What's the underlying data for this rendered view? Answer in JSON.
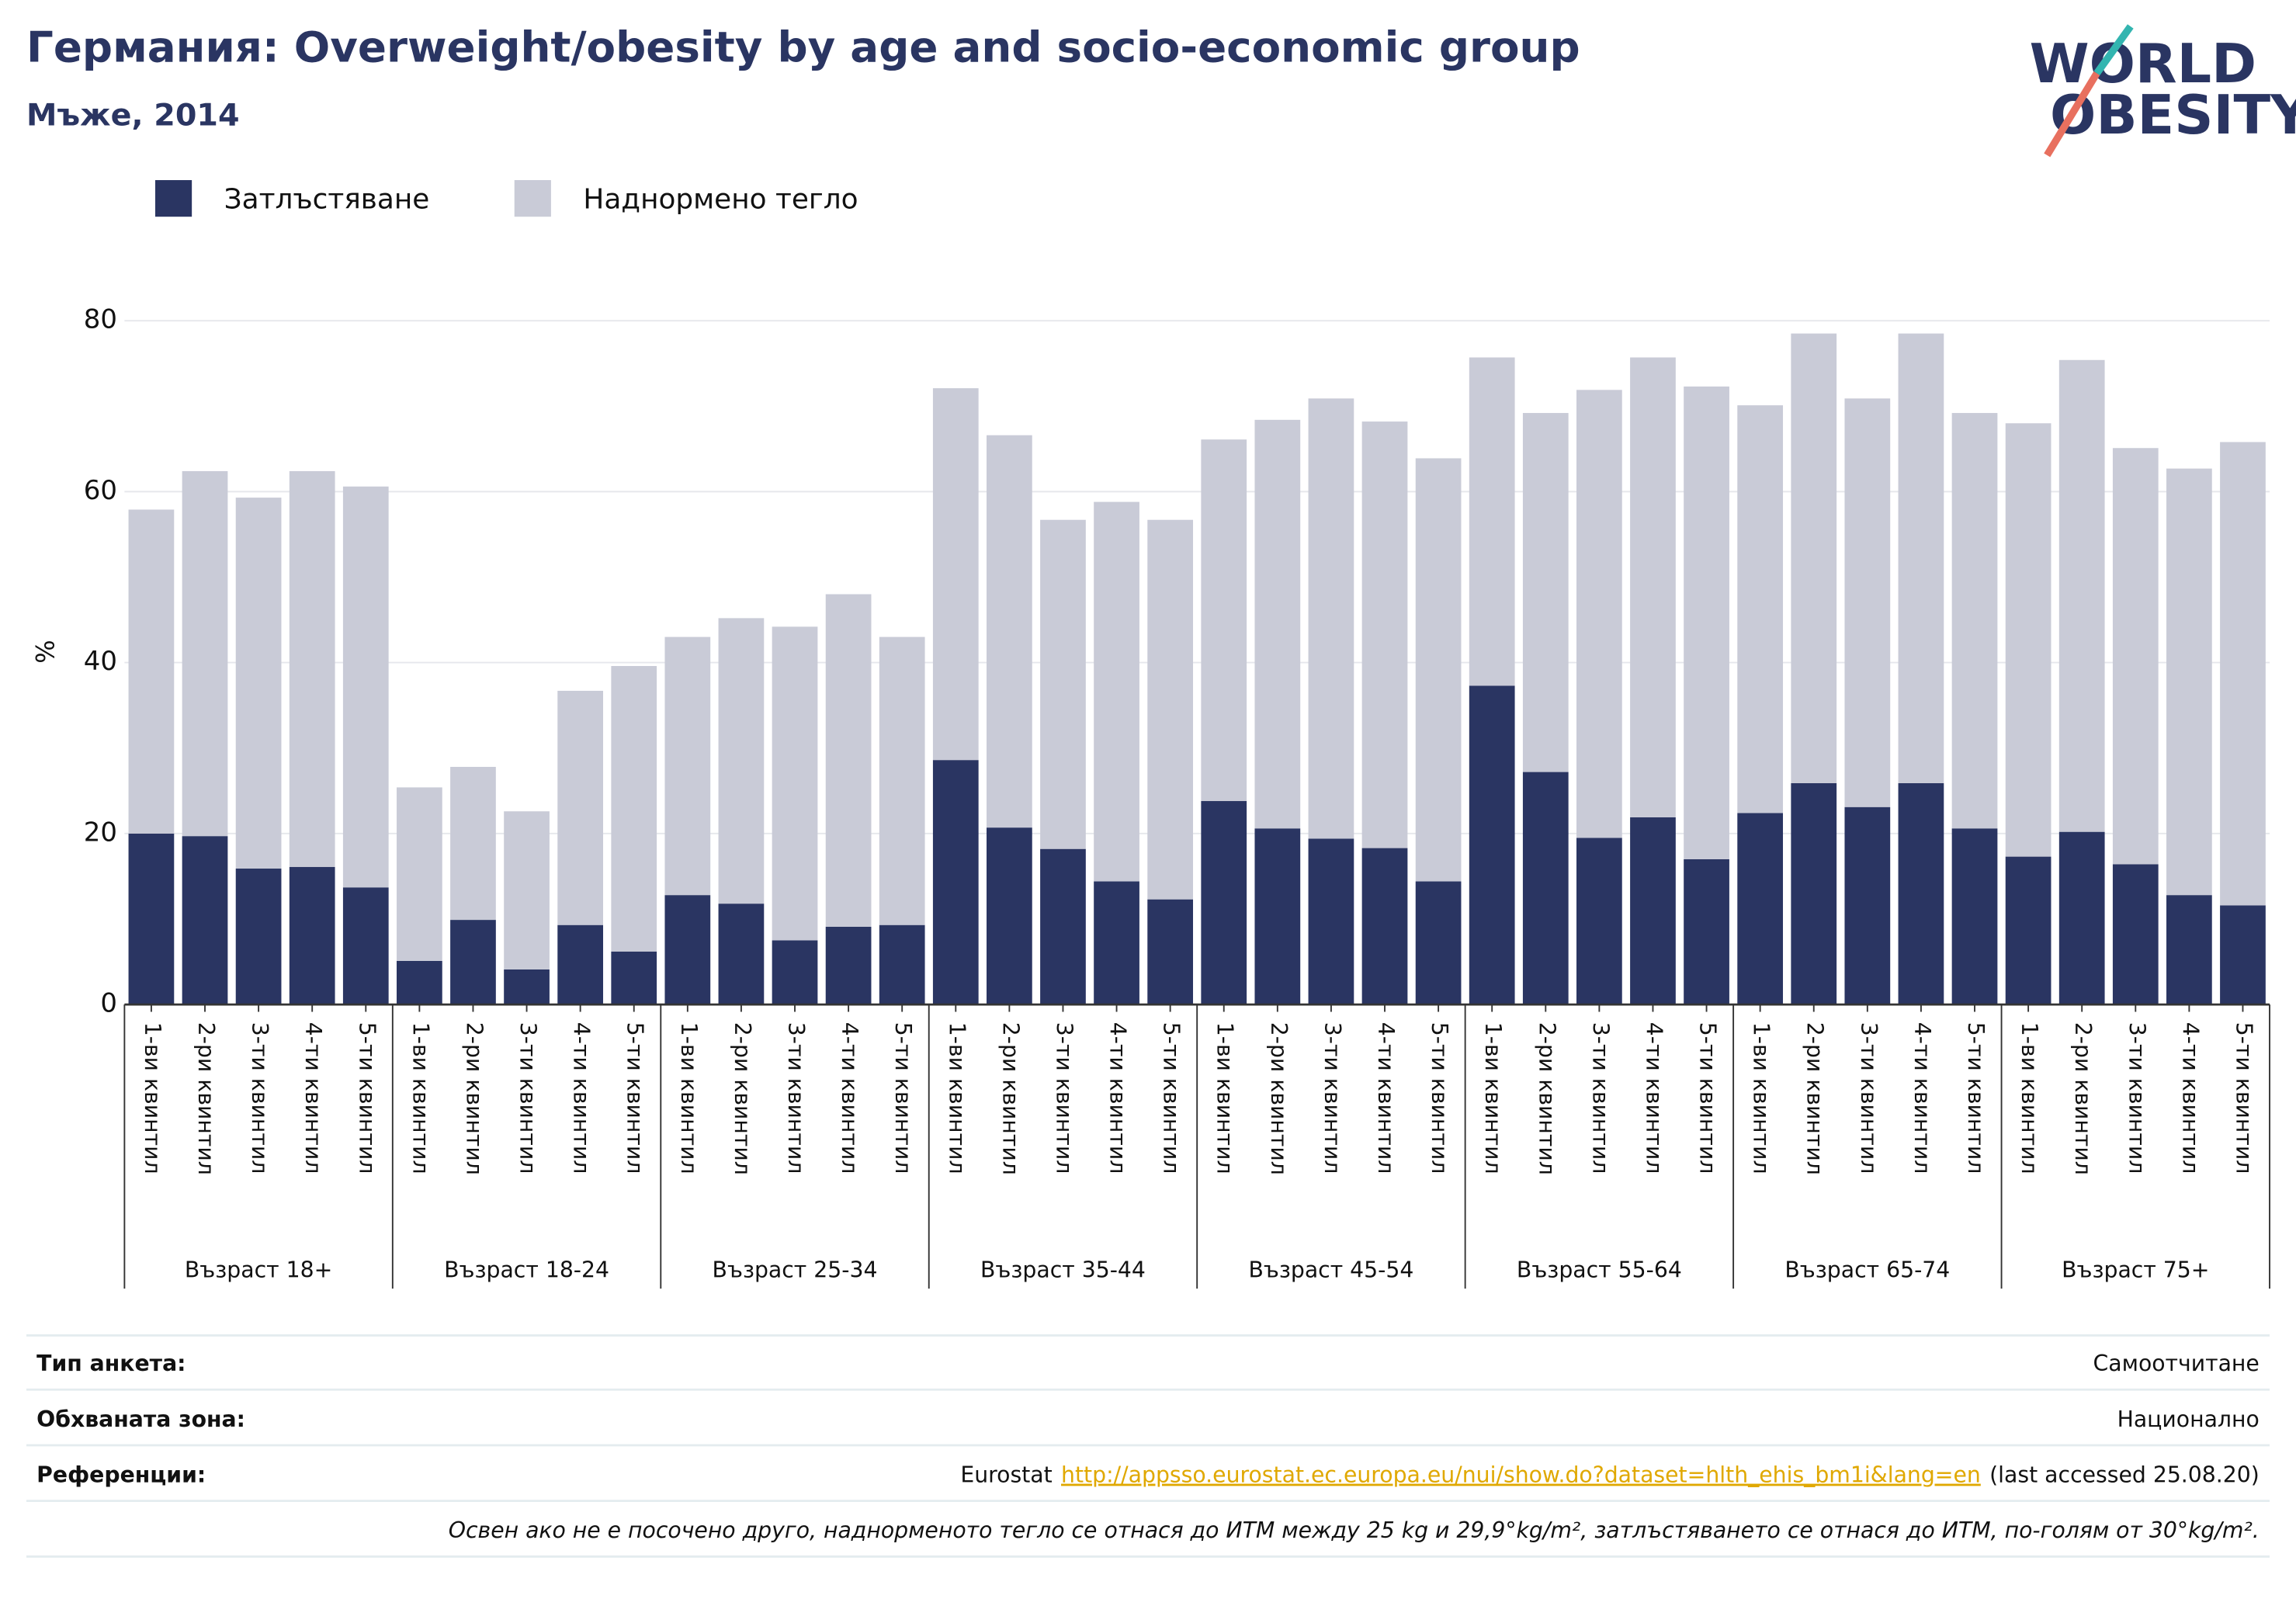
{
  "chart_data": {
    "type": "stacked_bar",
    "title": "Германия: Overweight/obesity by age and socio-economic group",
    "subtitle": "Мъже, 2014",
    "y_label": "%",
    "logo": [
      "WORLD",
      "OBESITY"
    ],
    "groups": [
      {
        "name": "Възраст 18+",
        "categories": [
          "1-ви квинтил",
          "2-ри квинтил",
          "3-ти квинтил",
          "4-ти квинтил",
          "5-ти квинтил"
        ]
      },
      {
        "name": "Възраст 18-24",
        "categories": [
          "1-ви квинтил",
          "2-ри квинтил",
          "3-ти квинтил",
          "4-ти квинтил",
          "5-ти квинтил"
        ]
      },
      {
        "name": "Възраст 25-34",
        "categories": [
          "1-ви квинтил",
          "2-ри квинтил",
          "3-ти квинтил",
          "4-ти квинтил",
          "5-ти квинтил"
        ]
      },
      {
        "name": "Възраст 35-44",
        "categories": [
          "1-ви квинтил",
          "2-ри квинтил",
          "3-ти квинтил",
          "4-ти квинтил",
          "5-ти квинтил"
        ]
      },
      {
        "name": "Възраст 45-54",
        "categories": [
          "1-ви квинтил",
          "2-ри квинтил",
          "3-ти квинтил",
          "4-ти квинтил",
          "5-ти квинтил"
        ]
      },
      {
        "name": "Възраст 55-64",
        "categories": [
          "1-ви квинтил",
          "2-ри квинтил",
          "3-ти квинтил",
          "4-ти квинтил",
          "5-ти квинтил"
        ]
      },
      {
        "name": "Възраст 65-74",
        "categories": [
          "1-ви квинтил",
          "2-ри квинтил",
          "3-ти квинтил",
          "4-ти квинтил",
          "5-ти квинтил"
        ]
      },
      {
        "name": "Възраст 75+",
        "categories": [
          "1-ви квинтил",
          "2-ри квинтил",
          "3-ти квинтил",
          "4-ти квинтил",
          "5-ти квинтил"
        ]
      }
    ],
    "series": [
      {
        "name": "Затлъстяване",
        "color": "#2a3562",
        "values": [
          20.0,
          19.7,
          15.9,
          16.1,
          13.7,
          5.1,
          9.9,
          4.1,
          9.3,
          6.2,
          12.8,
          11.8,
          7.5,
          9.1,
          9.3,
          28.6,
          20.7,
          18.2,
          14.4,
          12.3,
          23.8,
          20.6,
          19.4,
          18.3,
          14.4,
          37.3,
          27.2,
          19.5,
          21.9,
          17.0,
          22.4,
          25.9,
          23.1,
          25.9,
          20.6,
          17.3,
          20.2,
          16.4,
          12.8,
          11.6
        ]
      },
      {
        "name": "Наднормено тегло",
        "color": "#c9cbd7",
        "values": [
          37.9,
          42.7,
          43.4,
          46.3,
          46.9,
          20.3,
          17.9,
          18.5,
          27.4,
          33.4,
          30.2,
          33.4,
          36.7,
          38.9,
          33.7,
          43.5,
          45.9,
          38.5,
          44.4,
          44.4,
          42.3,
          47.8,
          51.5,
          49.9,
          49.5,
          38.4,
          42.0,
          52.4,
          53.8,
          55.3,
          47.7,
          52.6,
          47.8,
          52.6,
          48.6,
          50.7,
          55.2,
          48.7,
          49.9,
          54.2
        ]
      }
    ],
    "ylim": [
      0,
      80
    ],
    "yticks": [
      0,
      20,
      40,
      60,
      80
    ],
    "grid": true
  },
  "footer": {
    "rows": [
      {
        "label": "Тип анкета:",
        "value": "Самоотчитане"
      },
      {
        "label": "Обхваната зона:",
        "value": "Национално"
      }
    ],
    "reference": {
      "label": "Референции:",
      "source": "Eurostat",
      "link": "http://appsso.eurostat.ec.europa.eu/nui/show.do?dataset=hlth_ehis_bm1i&lang=en",
      "accessed": "(last accessed 25.08.20)"
    },
    "note": "Освен ако не е посочено друго, наднорменото тегло се отнася до ИТМ между 25 kg и 29,9°kg/m², затлъстяването се отнася до ИТМ, по-голям от 30°kg/m²."
  }
}
